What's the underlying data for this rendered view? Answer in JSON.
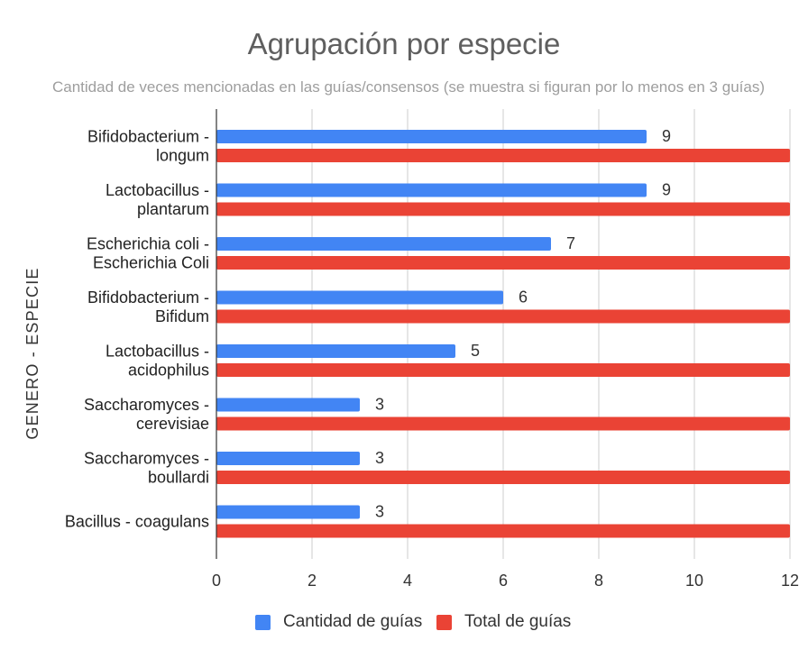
{
  "chart_data": {
    "type": "bar",
    "orientation": "horizontal",
    "title": "Agrupación por especie",
    "subtitle": "Cantidad de veces mencionadas en las guías/consensos (se muestra si figuran por lo menos en 3 guías)",
    "ylabel": "GENERO - ESPECIE",
    "xlabel": "",
    "categories": [
      [
        "Bifidobacterium -",
        "longum"
      ],
      [
        "Lactobacillus -",
        "plantarum"
      ],
      [
        "Escherichia coli -",
        "Escherichia Coli"
      ],
      [
        "Bifidobacterium -",
        "Bifidum"
      ],
      [
        "Lactobacillus -",
        "acidophilus"
      ],
      [
        "Saccharomyces -",
        "cerevisiae"
      ],
      [
        "Saccharomyces -",
        "boullardi"
      ],
      [
        "Bacillus - coagulans"
      ]
    ],
    "series": [
      {
        "name": "Cantidad de guías",
        "color": "#4285f4",
        "values": [
          9,
          9,
          7,
          6,
          5,
          3,
          3,
          3
        ],
        "show_labels": true
      },
      {
        "name": "Total de guías",
        "color": "#ea4335",
        "values": [
          12,
          12,
          12,
          12,
          12,
          12,
          12,
          12
        ],
        "show_labels": false
      }
    ],
    "xlim": [
      0,
      12
    ],
    "xticks": [
      "0",
      "2",
      "4",
      "6",
      "8",
      "10",
      "12"
    ],
    "grid": true,
    "legend_position": "bottom"
  }
}
